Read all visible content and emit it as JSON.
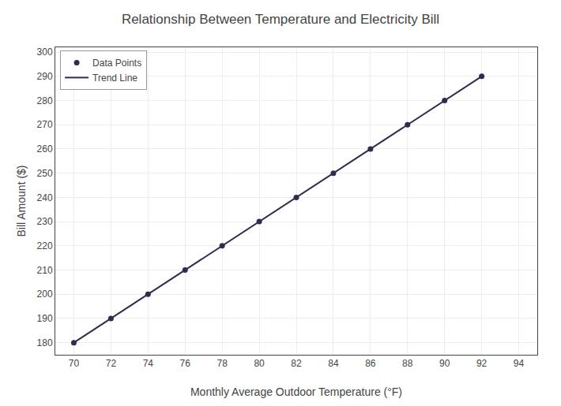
{
  "chart_data": {
    "type": "scatter",
    "title": "Relationship Between Temperature and Electricity Bill",
    "xlabel": "Monthly Average Outdoor Temperature (°F)",
    "ylabel": "Bill Amount ($)",
    "series": [
      {
        "name": "Data Points",
        "type": "scatter",
        "color": "#2d2d4e",
        "x": [
          70,
          72,
          74,
          76,
          78,
          80,
          82,
          84,
          86,
          88,
          90,
          92
        ],
        "values": [
          180,
          190,
          200,
          210,
          220,
          230,
          240,
          250,
          260,
          270,
          280,
          290
        ]
      },
      {
        "name": "Trend Line",
        "type": "line",
        "color": "#2d2d4e",
        "x": [
          70,
          92
        ],
        "values": [
          180,
          290
        ]
      }
    ],
    "xlim": [
      69,
      95
    ],
    "ylim": [
      175,
      302
    ],
    "xticks": [
      70,
      72,
      74,
      76,
      78,
      80,
      82,
      84,
      86,
      88,
      90,
      92,
      94
    ],
    "yticks": [
      180,
      190,
      200,
      210,
      220,
      230,
      240,
      250,
      260,
      270,
      280,
      290,
      300
    ],
    "grid": true,
    "legend": "upper left"
  }
}
